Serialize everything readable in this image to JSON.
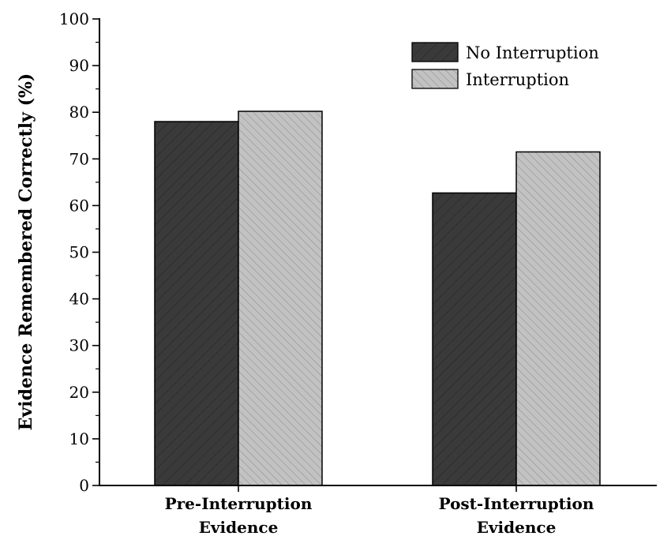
{
  "chart_data": {
    "type": "bar",
    "title": "",
    "xlabel": "",
    "ylabel": "Evidence Remembered Correctly (%)",
    "ylim": [
      0,
      100
    ],
    "yticks": [
      0,
      10,
      20,
      30,
      40,
      50,
      60,
      70,
      80,
      90,
      100
    ],
    "categories": [
      [
        "Pre-Interruption",
        "Evidence"
      ],
      [
        "Post-Interruption",
        "Evidence"
      ]
    ],
    "series": [
      {
        "name": "No Interruption",
        "values": [
          78,
          62.7
        ],
        "color": "#3a3a3a",
        "hatch_color": "#262626"
      },
      {
        "name": "Interruption",
        "values": [
          80.2,
          71.5
        ],
        "color": "#bdbdbd",
        "hatch_color": "#8a8a8a"
      }
    ],
    "legend_position": "top-right",
    "grid": false
  }
}
